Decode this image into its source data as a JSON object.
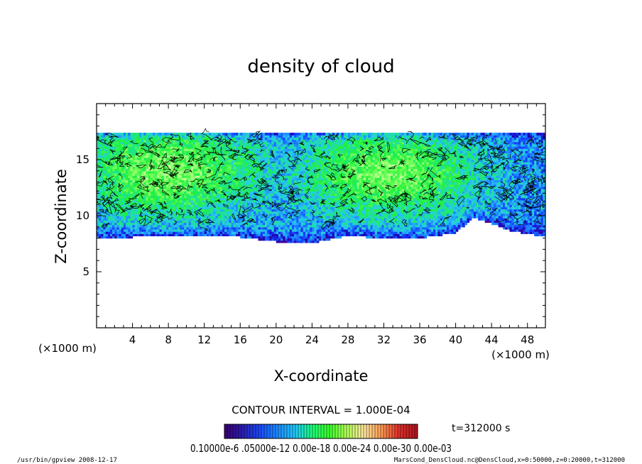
{
  "chart_data": {
    "type": "heatmap",
    "title": "density of cloud",
    "xlabel": "X-coordinate",
    "ylabel": "Z-coordinate",
    "x_units": "(×1000 m)",
    "y_units": "(×1000 m)",
    "xlim": [
      0,
      50
    ],
    "ylim": [
      0,
      20
    ],
    "x_ticks": [
      4,
      8,
      12,
      16,
      20,
      24,
      28,
      32,
      36,
      40,
      44,
      48
    ],
    "y_ticks": [
      5,
      10,
      15
    ],
    "cloud_band": {
      "bottom_km": [
        [
          0,
          8.0
        ],
        [
          8,
          8.2
        ],
        [
          16,
          8.1
        ],
        [
          20,
          7.7
        ],
        [
          24,
          7.6
        ],
        [
          28,
          8.2
        ],
        [
          32,
          8.0
        ],
        [
          36,
          8.0
        ],
        [
          40,
          8.5
        ],
        [
          42,
          9.8
        ],
        [
          44,
          9.3
        ],
        [
          46,
          8.7
        ],
        [
          50,
          8.1
        ]
      ],
      "top_km": 17.5,
      "high_density_core_km": [
        {
          "x": [
            0,
            16
          ],
          "z": [
            11,
            17
          ]
        },
        {
          "x": [
            25,
            40
          ],
          "z": [
            11,
            16.5
          ]
        }
      ]
    },
    "contour_interval": "CONTOUR INTERVAL = 1.000E-04",
    "time_label": "t=312000 s",
    "colorbar": {
      "labels_text": "0.10000e-6 .05000e-12 0.00e-18 0.00e-24 0.00e-30 0.00e-03",
      "colors": [
        "#3a0078",
        "#2a1fb4",
        "#1a4cff",
        "#1e8cff",
        "#20c8ff",
        "#1eff7a",
        "#3cff2a",
        "#b4ff5a",
        "#ffe6a0",
        "#ff9a50",
        "#e0302a",
        "#b4141e"
      ]
    },
    "footer_left": "/usr/bin/gpview   2008-12-17",
    "footer_right": "MarsCond_DensCloud.nc@DensCloud,x=0:50000,z=0:20000,t=312000"
  }
}
